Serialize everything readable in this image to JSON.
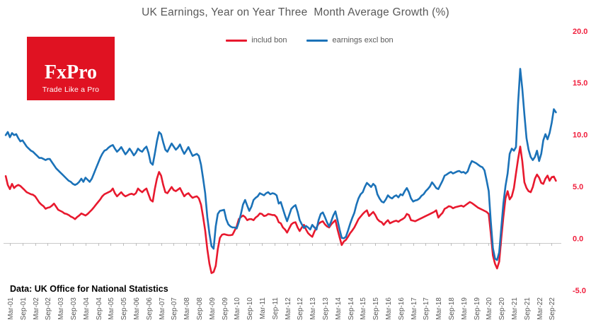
{
  "title": "UK Earnings, Year on Year Three  Month Average Growth (%)",
  "logo": {
    "brand": "FxPro",
    "tagline": "Trade Like a Pro"
  },
  "footer": "Data: UK Office for National Statistics",
  "colors": {
    "line_includ_bon": "#e8192e",
    "line_earnings_excl_bon": "#1b72b8",
    "y_tick_text": "#f01e3c",
    "axis_text": "#595959",
    "axis_line": "#c9c9c9",
    "logo_bg": "#e01222"
  },
  "chart_data": {
    "type": "line",
    "title": "UK Earnings, Year on Year Three Month Average Growth (%)",
    "x_start": "Jan-01",
    "x_end": "Nov-22",
    "x_frequency": "monthly",
    "grid": "off",
    "legend_position": "top-center",
    "ylim": [
      -5,
      20
    ],
    "y_ticks": [
      {
        "label": "20.0",
        "value": 20
      },
      {
        "label": "15.0",
        "value": 15
      },
      {
        "label": "10.0",
        "value": 10
      },
      {
        "label": "5.0",
        "value": 5
      },
      {
        "label": "0.0",
        "value": 0
      },
      {
        "label": "-5.0",
        "value": -5
      }
    ],
    "x_tick_labels": [
      "Mar-01",
      "Sep-01",
      "Mar-02",
      "Sep-02",
      "Mar-03",
      "Sep-03",
      "Mar-04",
      "Sep-04",
      "Mar-05",
      "Sep-05",
      "Mar-06",
      "Sep-06",
      "Mar-07",
      "Sep-07",
      "Mar-08",
      "Sep-08",
      "Mar-09",
      "Sep-09",
      "Mar-10",
      "Sep-10",
      "Mar-11",
      "Sep-11",
      "Mar-12",
      "Sep-12",
      "Mar-13",
      "Sep-13",
      "Mar-14",
      "Sep-14",
      "Mar-15",
      "Sep-15",
      "Mar-16",
      "Sep-16",
      "Mar-17",
      "Sep-17",
      "Mar-18",
      "Sep-18",
      "Mar-19",
      "Sep-19",
      "Mar-20",
      "Sep-20",
      "Mar-21",
      "Sep-21",
      "Mar-22",
      "Sep-22"
    ],
    "series": [
      {
        "name": "includ bon",
        "color": "#e8192e",
        "monthly_values": [
          6.45,
          5.6,
          5.2,
          5.7,
          5.3,
          5.5,
          5.6,
          5.5,
          5.3,
          5.1,
          4.9,
          4.8,
          4.7,
          4.65,
          4.5,
          4.2,
          3.9,
          3.7,
          3.55,
          3.3,
          3.4,
          3.45,
          3.6,
          3.8,
          3.5,
          3.2,
          3.1,
          3.0,
          2.85,
          2.8,
          2.7,
          2.55,
          2.45,
          2.3,
          2.5,
          2.65,
          2.85,
          2.75,
          2.65,
          2.8,
          3.0,
          3.2,
          3.45,
          3.7,
          3.95,
          4.2,
          4.5,
          4.7,
          4.8,
          4.9,
          5.0,
          5.25,
          4.8,
          4.5,
          4.7,
          4.9,
          4.65,
          4.5,
          4.6,
          4.7,
          4.75,
          4.65,
          4.8,
          5.25,
          5.05,
          4.9,
          5.1,
          5.25,
          4.7,
          4.15,
          4.0,
          5.2,
          6.2,
          6.85,
          6.5,
          5.6,
          4.9,
          4.8,
          5.1,
          5.4,
          5.1,
          5.0,
          5.15,
          5.3,
          4.9,
          4.5,
          4.7,
          4.8,
          4.55,
          4.35,
          4.45,
          4.5,
          4.3,
          3.7,
          2.5,
          1.2,
          -0.6,
          -2.0,
          -2.9,
          -2.8,
          -2.2,
          -0.6,
          0.5,
          0.8,
          0.85,
          0.8,
          0.75,
          0.75,
          0.8,
          1.2,
          1.6,
          2.3,
          2.5,
          2.65,
          2.5,
          2.2,
          2.3,
          2.3,
          2.2,
          2.45,
          2.6,
          2.85,
          2.8,
          2.6,
          2.65,
          2.8,
          2.75,
          2.7,
          2.7,
          2.5,
          2.0,
          1.9,
          1.5,
          1.3,
          1.0,
          1.4,
          1.8,
          1.95,
          2.0,
          1.5,
          1.15,
          1.5,
          1.75,
          1.3,
          0.95,
          0.75,
          0.6,
          1.1,
          1.5,
          1.85,
          2.0,
          2.1,
          1.8,
          1.6,
          1.5,
          1.8,
          2.0,
          2.2,
          1.3,
          0.55,
          -0.2,
          0.15,
          0.3,
          0.6,
          0.95,
          1.2,
          1.5,
          1.9,
          2.3,
          2.55,
          2.8,
          3.0,
          3.15,
          2.6,
          2.8,
          3.0,
          2.7,
          2.3,
          2.1,
          2.0,
          1.75,
          2.0,
          2.2,
          1.9,
          2.0,
          2.1,
          2.15,
          2.05,
          2.2,
          2.3,
          2.45,
          2.8,
          2.7,
          2.2,
          2.15,
          2.1,
          2.2,
          2.3,
          2.4,
          2.5,
          2.6,
          2.7,
          2.8,
          2.9,
          3.0,
          3.15,
          2.45,
          2.7,
          2.9,
          3.3,
          3.4,
          3.55,
          3.5,
          3.35,
          3.45,
          3.5,
          3.55,
          3.6,
          3.5,
          3.65,
          3.8,
          3.95,
          3.85,
          3.7,
          3.55,
          3.4,
          3.3,
          3.2,
          3.1,
          3.0,
          2.8,
          0.95,
          -1.2,
          -2.0,
          -2.45,
          -1.8,
          0.5,
          2.5,
          4.3,
          5.0,
          4.2,
          4.5,
          5.3,
          6.7,
          8.1,
          9.3,
          7.9,
          5.85,
          5.3,
          5.0,
          4.9,
          5.4,
          6.2,
          6.6,
          6.3,
          5.8,
          5.7,
          6.2,
          6.5,
          6.0,
          6.35,
          6.4,
          6.0
        ]
      },
      {
        "name": "earnings excl bon",
        "color": "#1b72b8",
        "monthly_values": [
          10.4,
          10.7,
          10.2,
          10.6,
          10.4,
          10.5,
          10.1,
          9.8,
          9.9,
          9.6,
          9.3,
          9.1,
          8.9,
          8.8,
          8.6,
          8.4,
          8.2,
          8.2,
          8.1,
          8.0,
          8.1,
          8.1,
          7.8,
          7.5,
          7.2,
          7.0,
          6.8,
          6.6,
          6.4,
          6.2,
          6.0,
          5.9,
          5.7,
          5.6,
          5.7,
          5.9,
          6.2,
          5.9,
          6.3,
          6.1,
          5.9,
          6.2,
          6.7,
          7.2,
          7.7,
          8.2,
          8.6,
          8.9,
          9.0,
          9.2,
          9.35,
          9.45,
          9.1,
          8.8,
          9.0,
          9.25,
          8.9,
          8.55,
          8.8,
          9.1,
          8.8,
          8.45,
          8.7,
          9.1,
          8.9,
          8.8,
          9.1,
          9.3,
          8.7,
          7.75,
          7.55,
          8.6,
          9.8,
          10.7,
          10.5,
          9.7,
          9.0,
          8.8,
          9.2,
          9.6,
          9.3,
          9.0,
          9.2,
          9.5,
          9.0,
          8.6,
          8.9,
          9.25,
          8.8,
          8.4,
          8.5,
          8.6,
          8.4,
          7.55,
          6.2,
          4.8,
          2.5,
          0.9,
          -0.3,
          -0.55,
          1.6,
          2.8,
          3.1,
          3.15,
          3.2,
          2.3,
          1.8,
          1.6,
          1.5,
          1.5,
          1.4,
          2.0,
          2.8,
          3.7,
          4.15,
          3.6,
          3.1,
          3.5,
          4.15,
          4.35,
          4.5,
          4.8,
          4.7,
          4.6,
          4.8,
          4.9,
          4.7,
          4.8,
          4.75,
          4.6,
          3.8,
          3.95,
          3.3,
          2.65,
          2.1,
          2.7,
          3.3,
          3.5,
          3.65,
          3.0,
          2.2,
          1.8,
          1.45,
          1.65,
          1.5,
          1.3,
          1.75,
          1.5,
          1.3,
          2.2,
          2.8,
          2.95,
          2.5,
          2.0,
          1.6,
          2.1,
          2.65,
          3.05,
          2.2,
          1.3,
          0.5,
          0.45,
          0.6,
          1.2,
          1.85,
          2.4,
          2.9,
          3.7,
          4.3,
          4.7,
          4.9,
          5.4,
          5.8,
          5.6,
          5.4,
          5.7,
          5.5,
          4.7,
          4.3,
          4.0,
          3.9,
          4.2,
          4.6,
          4.4,
          4.3,
          4.5,
          4.6,
          4.4,
          4.7,
          4.6,
          5.0,
          5.3,
          4.9,
          4.3,
          4.0,
          4.1,
          4.15,
          4.3,
          4.55,
          4.7,
          5.0,
          5.2,
          5.45,
          5.85,
          5.6,
          5.3,
          5.2,
          5.6,
          6.0,
          6.5,
          6.6,
          6.75,
          6.85,
          6.7,
          6.8,
          6.9,
          6.95,
          6.8,
          6.85,
          6.7,
          6.9,
          7.5,
          7.9,
          7.8,
          7.7,
          7.55,
          7.4,
          7.3,
          7.0,
          6.05,
          5.0,
          2.1,
          -0.5,
          -1.5,
          -1.65,
          -0.9,
          1.5,
          3.8,
          5.5,
          6.7,
          8.6,
          9.1,
          8.9,
          9.25,
          13.5,
          16.8,
          14.9,
          12.4,
          10.1,
          9.0,
          8.3,
          8.0,
          8.3,
          8.9,
          7.9,
          8.6,
          9.9,
          10.5,
          10.0,
          10.6,
          11.6,
          12.9,
          12.6
        ]
      }
    ]
  }
}
